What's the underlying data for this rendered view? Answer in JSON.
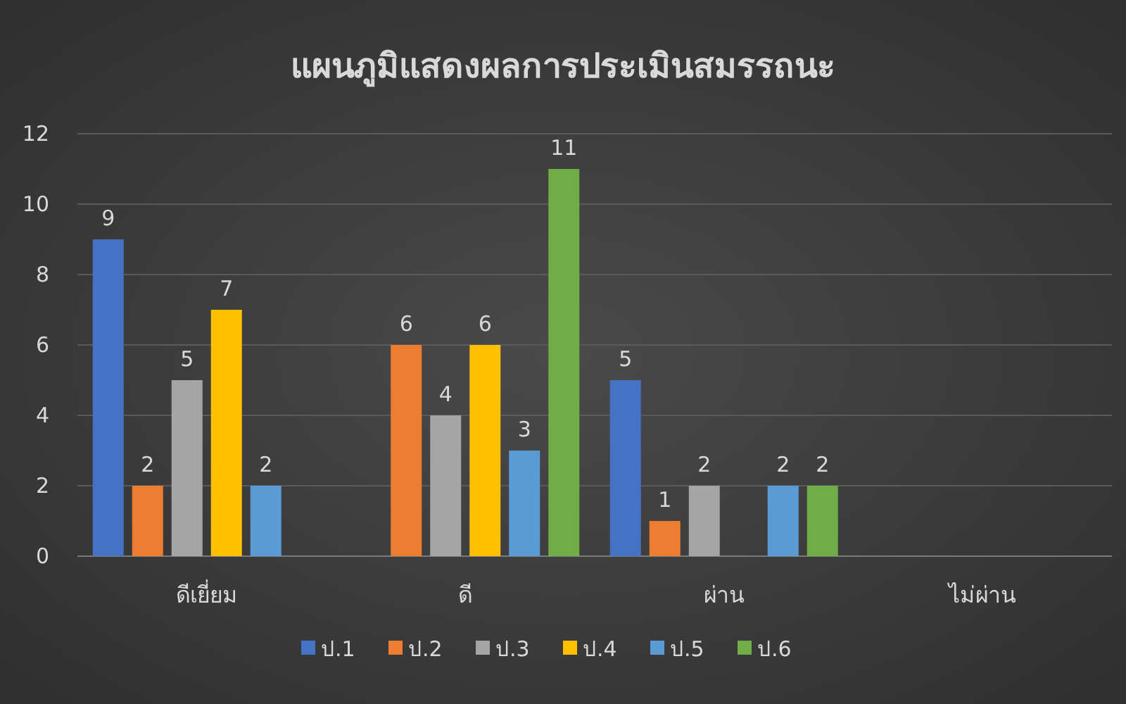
{
  "chart_data": {
    "type": "bar",
    "title": "แผนภูมิแสดงผลการประเมินสมรรถนะ",
    "categories": [
      "ดีเยี่ยม",
      "ดี",
      "ผ่าน",
      "ไม่ผ่าน"
    ],
    "series": [
      {
        "name": "ป.1",
        "color": "#4472c4",
        "values": [
          9,
          null,
          5,
          null
        ]
      },
      {
        "name": "ป.2",
        "color": "#ed7d31",
        "values": [
          2,
          6,
          1,
          null
        ]
      },
      {
        "name": "ป.3",
        "color": "#a5a5a5",
        "values": [
          5,
          4,
          2,
          null
        ]
      },
      {
        "name": "ป.4",
        "color": "#ffc000",
        "values": [
          7,
          6,
          null,
          null
        ]
      },
      {
        "name": "ป.5",
        "color": "#5b9bd5",
        "values": [
          2,
          3,
          2,
          null
        ]
      },
      {
        "name": "ป.6",
        "color": "#70ad47",
        "values": [
          null,
          11,
          2,
          null
        ]
      }
    ],
    "ylim": [
      0,
      12
    ],
    "yticks": [
      0,
      2,
      4,
      6,
      8,
      10,
      12
    ],
    "grid": "y",
    "legend": "bottom",
    "data_labels": true
  }
}
